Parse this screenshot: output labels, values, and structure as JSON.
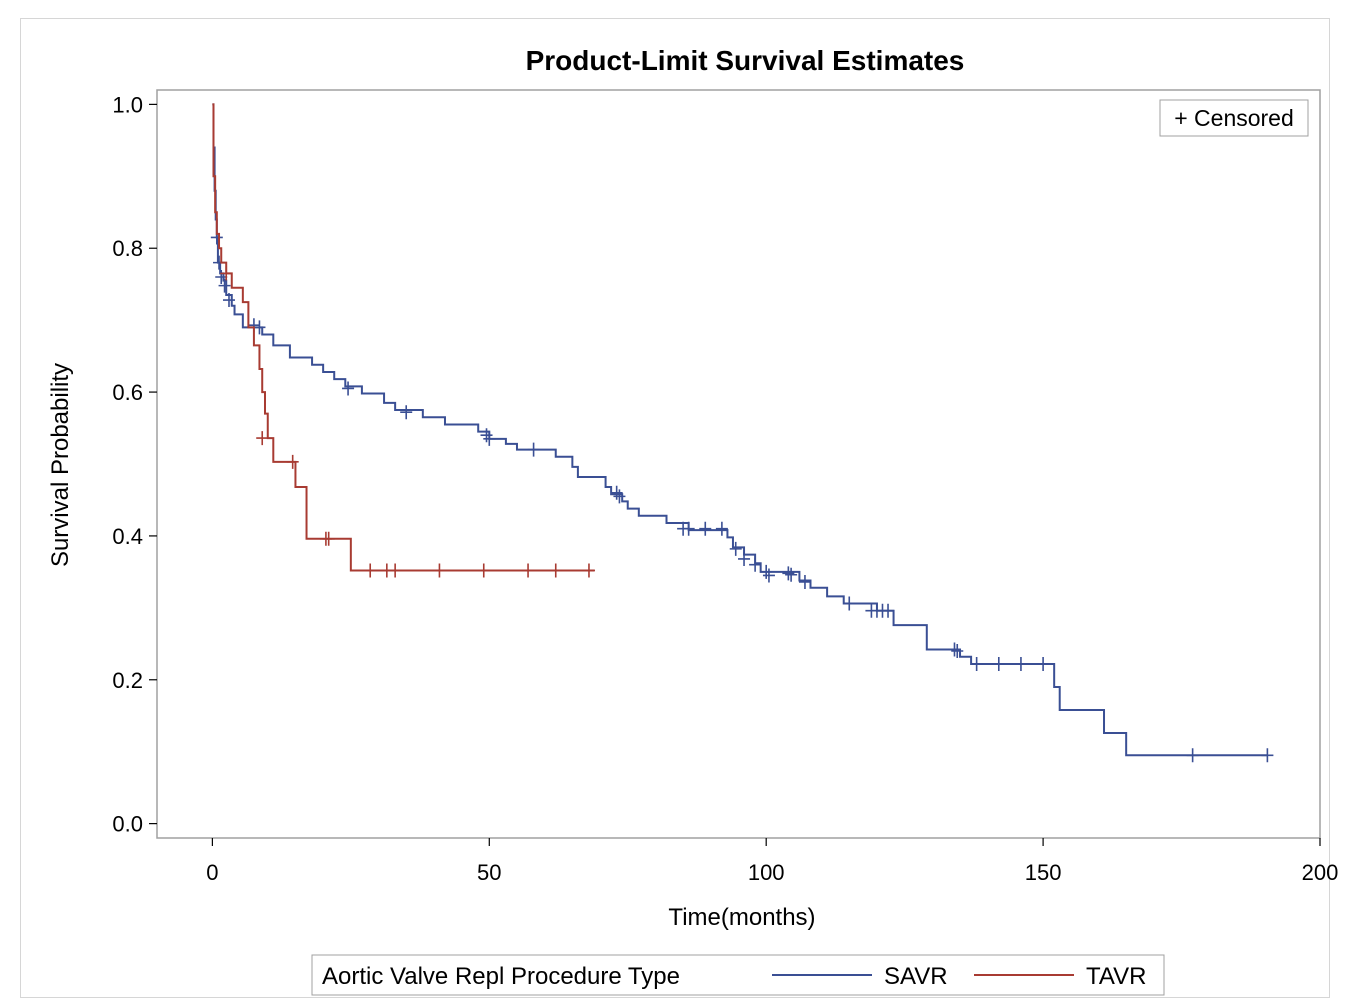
{
  "chart_data": {
    "type": "line",
    "subtype": "kaplan-meier-step",
    "title": "Product-Limit Survival Estimates",
    "xlabel": "Time(months)",
    "ylabel": "Survival Probability",
    "xlim": [
      -10,
      200
    ],
    "ylim": [
      -0.02,
      1.02
    ],
    "x_ticks": [
      0,
      50,
      100,
      150,
      200
    ],
    "y_ticks": [
      0.0,
      0.2,
      0.4,
      0.6,
      0.8,
      1.0
    ],
    "x_tick_labels": [
      "0",
      "50",
      "100",
      "150",
      "200"
    ],
    "y_tick_labels": [
      "0.0",
      "0.2",
      "0.4",
      "0.6",
      "0.8",
      "1.0"
    ],
    "censored_legend": "+ Censored",
    "legend_title": "Aortic Valve Repl Procedure Type",
    "legend_position": "bottom",
    "series": [
      {
        "name": "SAVR",
        "color": "#3a4f94",
        "steps": [
          [
            0,
            1.0
          ],
          [
            0.2,
            0.94
          ],
          [
            0.4,
            0.88
          ],
          [
            0.6,
            0.84
          ],
          [
            0.8,
            0.815
          ],
          [
            1.0,
            0.78
          ],
          [
            1.4,
            0.765
          ],
          [
            2.0,
            0.755
          ],
          [
            2.5,
            0.735
          ],
          [
            3.5,
            0.72
          ],
          [
            4,
            0.708
          ],
          [
            5.5,
            0.69
          ],
          [
            9,
            0.68
          ],
          [
            11,
            0.665
          ],
          [
            14,
            0.648
          ],
          [
            18,
            0.638
          ],
          [
            20,
            0.628
          ],
          [
            22,
            0.618
          ],
          [
            24,
            0.608
          ],
          [
            27,
            0.598
          ],
          [
            31,
            0.585
          ],
          [
            33,
            0.575
          ],
          [
            38,
            0.565
          ],
          [
            42,
            0.555
          ],
          [
            48,
            0.545
          ],
          [
            50,
            0.535
          ],
          [
            53,
            0.528
          ],
          [
            55,
            0.52
          ],
          [
            62,
            0.51
          ],
          [
            65,
            0.496
          ],
          [
            66,
            0.482
          ],
          [
            71,
            0.468
          ],
          [
            72,
            0.458
          ],
          [
            74,
            0.448
          ],
          [
            75,
            0.438
          ],
          [
            77,
            0.428
          ],
          [
            82,
            0.418
          ],
          [
            86,
            0.408
          ],
          [
            93,
            0.398
          ],
          [
            94,
            0.384
          ],
          [
            96,
            0.374
          ],
          [
            98,
            0.362
          ],
          [
            99,
            0.35
          ],
          [
            106,
            0.338
          ],
          [
            108,
            0.328
          ],
          [
            111,
            0.316
          ],
          [
            114,
            0.306
          ],
          [
            120,
            0.296
          ],
          [
            123,
            0.276
          ],
          [
            129,
            0.242
          ],
          [
            135,
            0.232
          ],
          [
            137,
            0.222
          ],
          [
            152,
            0.19
          ],
          [
            153,
            0.158
          ],
          [
            161,
            0.126
          ],
          [
            165,
            0.095
          ],
          [
            190.5,
            0.095
          ]
        ],
        "censored": [
          [
            0.8,
            0.815
          ],
          [
            1.2,
            0.78
          ],
          [
            1.6,
            0.76
          ],
          [
            2.2,
            0.748
          ],
          [
            3.0,
            0.728
          ],
          [
            7.5,
            0.693
          ],
          [
            8.5,
            0.69
          ],
          [
            24.5,
            0.605
          ],
          [
            35,
            0.572
          ],
          [
            49.5,
            0.54
          ],
          [
            50,
            0.535
          ],
          [
            58,
            0.52
          ],
          [
            73,
            0.46
          ],
          [
            73.5,
            0.455
          ],
          [
            85,
            0.41
          ],
          [
            86,
            0.41
          ],
          [
            89,
            0.41
          ],
          [
            92,
            0.41
          ],
          [
            94.5,
            0.382
          ],
          [
            96,
            0.368
          ],
          [
            98,
            0.36
          ],
          [
            100,
            0.35
          ],
          [
            100.5,
            0.345
          ],
          [
            104,
            0.348
          ],
          [
            104.5,
            0.346
          ],
          [
            107,
            0.336
          ],
          [
            115,
            0.306
          ],
          [
            119,
            0.296
          ],
          [
            120,
            0.296
          ],
          [
            121,
            0.296
          ],
          [
            122,
            0.296
          ],
          [
            134,
            0.242
          ],
          [
            134.5,
            0.24
          ],
          [
            138,
            0.222
          ],
          [
            142,
            0.222
          ],
          [
            146,
            0.222
          ],
          [
            150,
            0.222
          ],
          [
            177,
            0.095
          ],
          [
            190.5,
            0.095
          ]
        ]
      },
      {
        "name": "TAVR",
        "color": "#a83b32",
        "steps": [
          [
            0,
            1.0
          ],
          [
            0.2,
            0.9
          ],
          [
            0.5,
            0.85
          ],
          [
            0.8,
            0.82
          ],
          [
            1.2,
            0.8
          ],
          [
            1.6,
            0.78
          ],
          [
            2.5,
            0.765
          ],
          [
            3.5,
            0.745
          ],
          [
            5.5,
            0.725
          ],
          [
            6.5,
            0.69
          ],
          [
            7.5,
            0.665
          ],
          [
            8.5,
            0.632
          ],
          [
            9,
            0.6
          ],
          [
            9.5,
            0.57
          ],
          [
            10,
            0.536
          ],
          [
            11,
            0.503
          ],
          [
            15,
            0.468
          ],
          [
            17,
            0.396
          ],
          [
            25,
            0.352
          ],
          [
            69,
            0.352
          ]
        ],
        "censored": [
          [
            2.5,
            0.765
          ],
          [
            9.0,
            0.536
          ],
          [
            14.5,
            0.503
          ],
          [
            20.5,
            0.396
          ],
          [
            21,
            0.396
          ],
          [
            28.5,
            0.352
          ],
          [
            31.5,
            0.352
          ],
          [
            33,
            0.352
          ],
          [
            41,
            0.352
          ],
          [
            49,
            0.352
          ],
          [
            57,
            0.352
          ],
          [
            62,
            0.352
          ],
          [
            68,
            0.352
          ]
        ]
      }
    ]
  }
}
